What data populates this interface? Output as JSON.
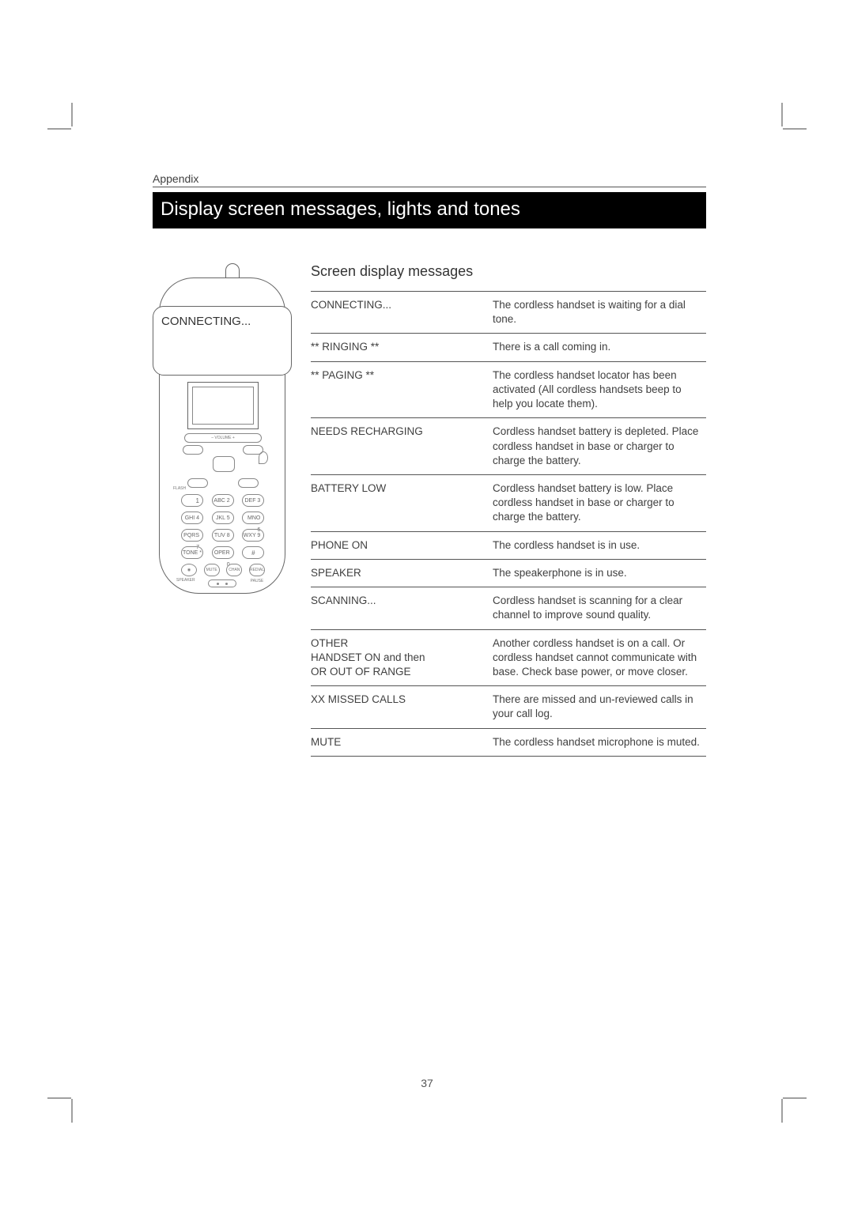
{
  "page": {
    "appendix": "Appendix",
    "title": "Display screen messages, lights and tones",
    "page_number": "37"
  },
  "colors": {
    "text": "#404040",
    "bar_bg": "#000000",
    "bar_text": "#ffffff",
    "rule": "#555555",
    "crop": "#a0a0a0"
  },
  "typography": {
    "body_size_pt": 10,
    "title_size_pt": 18,
    "section_size_pt": 13.5,
    "font_family": "Arial"
  },
  "handset": {
    "screen_text": "CONNECTING...",
    "vol_label": "–     VOLUME     +",
    "flash_label": "FLASH",
    "keys": [
      "1",
      "ABC 2",
      "DEF 3",
      "GHI 4",
      "JKL 5",
      "MNO 6",
      "PQRS 7",
      "TUV 8",
      "WXY 9",
      "TONE *",
      "OPER 0",
      "#"
    ],
    "bottom": [
      "",
      "MUTE",
      "CHAN",
      "REDIAL PAUSE"
    ],
    "speaker_label": "SPEAKER"
  },
  "messages": {
    "heading": "Screen display messages",
    "rows": [
      {
        "left": "CONNECTING...",
        "right": "The cordless handset is waiting for a dial tone."
      },
      {
        "left": "** RINGING **",
        "right": "There is a call coming in."
      },
      {
        "left": "** PAGING **",
        "right": "The cordless handset locator has been activated (All cordless handsets beep to help you locate them)."
      },
      {
        "left": "NEEDS RECHARGING",
        "right": "Cordless handset battery is depleted. Place cordless handset in base or charger to charge the battery."
      },
      {
        "left": "BATTERY LOW",
        "right": "Cordless handset battery is low. Place cordless handset in base or charger to charge the battery."
      },
      {
        "left": "PHONE ON",
        "right": "The cordless handset is in use."
      },
      {
        "left": "SPEAKER",
        "right": "The speakerphone is in use."
      },
      {
        "left": "SCANNING...",
        "right": "Cordless handset is scanning for a clear channel to improve sound quality."
      },
      {
        "left": "OTHER\nHANDSET ON     and then\nOR OUT OF RANGE",
        "right": "Another cordless handset is on a call. Or cordless handset cannot communicate with base. Check base power, or move closer."
      },
      {
        "left": "XX MISSED CALLS",
        "right": "There are missed and un-reviewed calls in your call log."
      },
      {
        "left": "MUTE",
        "right": "The cordless handset microphone is muted."
      }
    ]
  }
}
